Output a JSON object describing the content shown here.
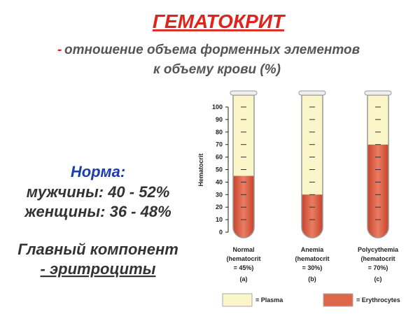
{
  "header": {
    "title": "ГЕМАТОКРИТ",
    "subtitle_dash": "-",
    "subtitle_line1": "отношение объема форменных элементов",
    "subtitle_line2": "к объему крови (%)"
  },
  "norm": {
    "heading": "Норма:",
    "men": "мужчины:  40 - 52%",
    "women": "женщины:  36 - 48%",
    "main1": "Главный компонент",
    "main2": "- эритроциты"
  },
  "diagram": {
    "axis_label": "Hematocrit",
    "ylim": [
      0,
      100
    ],
    "yticks": [
      0,
      10,
      20,
      30,
      40,
      50,
      60,
      70,
      80,
      90,
      100
    ],
    "tubes": [
      {
        "name": "Normal",
        "line2": "(hematocrit",
        "line3": "= 45%)",
        "tag": "(a)",
        "value": 45
      },
      {
        "name": "Anemia",
        "line2": "(hematocrit",
        "line3": "= 30%)",
        "tag": "(b)",
        "value": 30
      },
      {
        "name": "Polycythemia",
        "line2": "(hematocrit",
        "line3": "= 70%)",
        "tag": "(c)",
        "value": 70
      }
    ],
    "legend": {
      "plasma": "= Plasma",
      "erythrocytes": "= Erythrocytes",
      "plasma_color": "#fbf6c9",
      "erythrocytes_color": "#e0664b"
    }
  }
}
